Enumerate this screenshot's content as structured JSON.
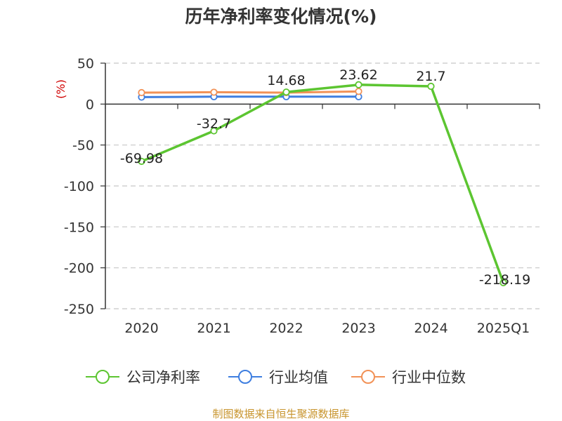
{
  "chart_data": {
    "type": "line",
    "title": "历年净利率变化情况(%)",
    "ylabel": "(%)",
    "xlabel": "",
    "categories": [
      "2020",
      "2021",
      "2022",
      "2023",
      "2024",
      "2025Q1"
    ],
    "ylim": [
      -250,
      50
    ],
    "yticks": [
      50,
      0,
      -50,
      -100,
      -150,
      -200,
      -250
    ],
    "grid": true,
    "legend_position": "bottom",
    "series": [
      {
        "name": "公司净利率",
        "color": "#5cc531",
        "values": [
          -69.98,
          -32.7,
          14.68,
          23.62,
          21.7,
          -218.19
        ],
        "labels": [
          "-69.98",
          "-32.7",
          "14.68",
          "23.62",
          "21.7",
          "-218.19"
        ]
      },
      {
        "name": "行业均值",
        "color": "#3e7ee0",
        "values": [
          8.5,
          9.0,
          9.0,
          9.0,
          null,
          null
        ]
      },
      {
        "name": "行业中位数",
        "color": "#f29257",
        "values": [
          14.0,
          14.5,
          14.0,
          15.5,
          null,
          null
        ]
      }
    ]
  },
  "source": "制图数据来自恒生聚源数据库"
}
